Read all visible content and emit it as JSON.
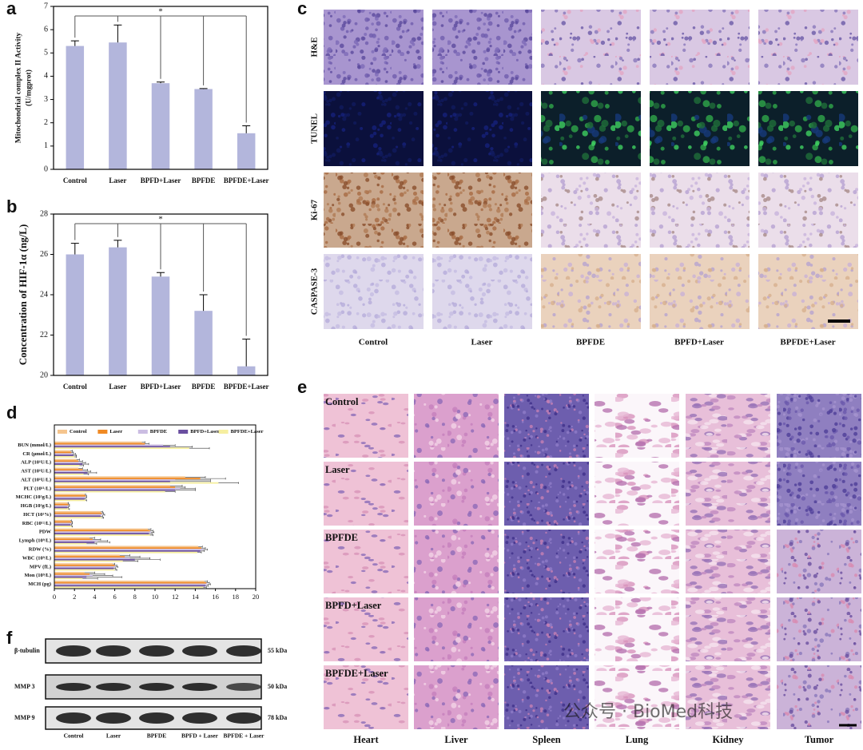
{
  "chart_data": [
    {
      "label": "a",
      "type": "bar",
      "y_label": [
        "Mitochondrial complex II Activity",
        "(U/mgprot)"
      ],
      "categories": [
        "Control",
        "Laser",
        "BPFD+Laser",
        "BPFDE",
        "BPFDE+Laser"
      ],
      "values": [
        5.3,
        5.45,
        3.7,
        3.45,
        1.55
      ],
      "errors": [
        0.22,
        0.75,
        0.05,
        0.02,
        0.32
      ],
      "color": "#b3b6dc",
      "ylim": [
        0,
        7
      ],
      "yticks": [
        0,
        1,
        2,
        3,
        4,
        5,
        6,
        7
      ],
      "annotation": "*"
    },
    {
      "label": "b",
      "type": "bar",
      "y_label": [
        "Concentration of HIF-1α (ng/L)"
      ],
      "categories": [
        "Control",
        "Laser",
        "BPFD+Laser",
        "BPFDE",
        "BPFDE+Laser"
      ],
      "values": [
        26.0,
        26.35,
        24.9,
        23.2,
        20.45
      ],
      "errors": [
        0.55,
        0.35,
        0.2,
        0.8,
        1.35
      ],
      "color": "#b3b6dc",
      "ylim": [
        20,
        28
      ],
      "yticks": [
        20,
        22,
        24,
        26,
        28
      ],
      "annotation": "*"
    },
    {
      "label": "d",
      "type": "hbar",
      "categories": [
        "BUN (mmol/L)",
        "CR (μmol/L)",
        "ALP (10¹U/L)",
        "AST (10¹U/L)",
        "ALT (10¹U/L)",
        "PLT (10¹¹/L)",
        "MCHC (10²g/L)",
        "HGB (10²g/L)",
        "HCT (10¹%)",
        "RBC (10¹²/L)",
        "PDW",
        "Lymph (10⁹/L)",
        "RDW (%)",
        "WBC (10⁹/L)",
        "MPV (fL)",
        "Mon (10⁹/L)",
        "MCH (pg)"
      ],
      "series": [
        {
          "name": "Control",
          "color": "#f5c58e",
          "values": [
            8.7,
            1.6,
            2.2,
            2.4,
            13.0,
            11.5,
            3.0,
            1.3,
            4.6,
            1.6,
            9.3,
            3.5,
            14.3,
            6.5,
            5.8,
            3.0,
            14.9
          ],
          "errors": [
            0.3,
            0.2,
            0.3,
            0.4,
            2.0,
            1.2,
            0.1,
            0.1,
            0.2,
            0.1,
            0.3,
            0.5,
            0.4,
            1.0,
            0.2,
            1.0,
            0.3
          ]
        },
        {
          "name": "Laser",
          "color": "#f08a24",
          "values": [
            9.0,
            1.7,
            2.4,
            2.8,
            14.5,
            12.0,
            3.1,
            1.4,
            4.7,
            1.7,
            9.5,
            3.8,
            14.6,
            7.0,
            6.0,
            3.5,
            15.1
          ],
          "errors": [
            0.4,
            0.2,
            0.4,
            0.5,
            2.5,
            1.0,
            0.1,
            0.1,
            0.2,
            0.1,
            0.3,
            0.8,
            0.4,
            1.5,
            0.2,
            1.5,
            0.3
          ]
        },
        {
          "name": "BPFDE",
          "color": "#cbbde2",
          "values": [
            10.8,
            1.8,
            2.6,
            3.0,
            12.0,
            12.5,
            3.1,
            1.4,
            4.8,
            1.7,
            9.6,
            4.3,
            14.8,
            7.5,
            6.1,
            3.8,
            15.2
          ],
          "errors": [
            1.2,
            0.3,
            0.5,
            0.6,
            3.5,
            1.5,
            0.1,
            0.1,
            0.2,
            0.1,
            0.3,
            1.0,
            0.4,
            2.0,
            0.2,
            2.0,
            0.3
          ]
        },
        {
          "name": "BPFD+Laser",
          "color": "#6a4fa0",
          "values": [
            11.5,
            1.9,
            2.8,
            3.3,
            11.5,
            12.0,
            3.0,
            1.3,
            4.6,
            1.6,
            9.4,
            4.0,
            14.5,
            8.0,
            5.9,
            3.2,
            15.0
          ],
          "errors": [
            2.2,
            0.3,
            0.6,
            0.9,
            4.0,
            2.0,
            0.1,
            0.1,
            0.2,
            0.1,
            0.3,
            1.5,
            0.4,
            2.5,
            0.2,
            3.5,
            0.3
          ]
        },
        {
          "name": "BPFDE+Laser",
          "color": "#f6efa0",
          "values": [
            13.4,
            2.0,
            2.5,
            2.9,
            16.3,
            11.0,
            3.1,
            1.4,
            4.7,
            1.7,
            9.5,
            3.2,
            14.2,
            6.8,
            6.0,
            2.8,
            14.8
          ],
          "errors": [
            2.0,
            0.2,
            0.4,
            0.5,
            2.0,
            1.0,
            0.1,
            0.1,
            0.2,
            0.1,
            0.3,
            1.0,
            0.4,
            1.5,
            0.2,
            1.5,
            0.3
          ]
        }
      ],
      "xlim": [
        0,
        20
      ],
      "xticks": [
        0,
        2,
        4,
        6,
        8,
        10,
        12,
        14,
        16,
        18,
        20
      ]
    }
  ],
  "histology": {
    "label": "c",
    "rows": [
      "H&E",
      "TUNEL",
      "Ki-67",
      "CASPASE-3"
    ],
    "columns": [
      "Control",
      "Laser",
      "BPFDE",
      "BPFD+Laser",
      "BPFDE+Laser"
    ]
  },
  "organs": {
    "label": "e",
    "rows": [
      "Control",
      "Laser",
      "BPFDE",
      "BPFD+Laser",
      "BPFDE+Laser"
    ],
    "columns": [
      "Heart",
      "Liver",
      "Spleen",
      "Lung",
      "Kidney",
      "Tumor"
    ]
  },
  "western_blot": {
    "label": "f",
    "rows": [
      {
        "protein": "β-tubulin",
        "size": "55 kDa"
      },
      {
        "protein": "MMP 3",
        "size": "50 kDa"
      },
      {
        "protein": "MMP 9",
        "size": "78 kDa"
      }
    ],
    "lanes": [
      "Control",
      "Laser",
      "BPFDE",
      "BPFD + Laser",
      "BPFDE + Laser"
    ]
  },
  "watermark": "公众号 · BioMed科技"
}
